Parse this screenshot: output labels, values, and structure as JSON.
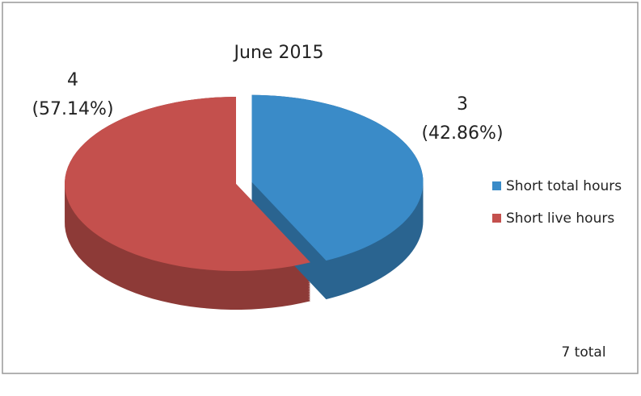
{
  "chart_data": {
    "type": "pie3d",
    "title": "June 2015",
    "categories": [
      "Short total hours",
      "Short live hours"
    ],
    "values": [
      3,
      4
    ],
    "percent_labels": [
      "(42.86%)",
      "(57.14%)"
    ],
    "colors": [
      "#3a8bc8",
      "#c4504d"
    ],
    "legend": "right",
    "annotation": "7 total"
  }
}
